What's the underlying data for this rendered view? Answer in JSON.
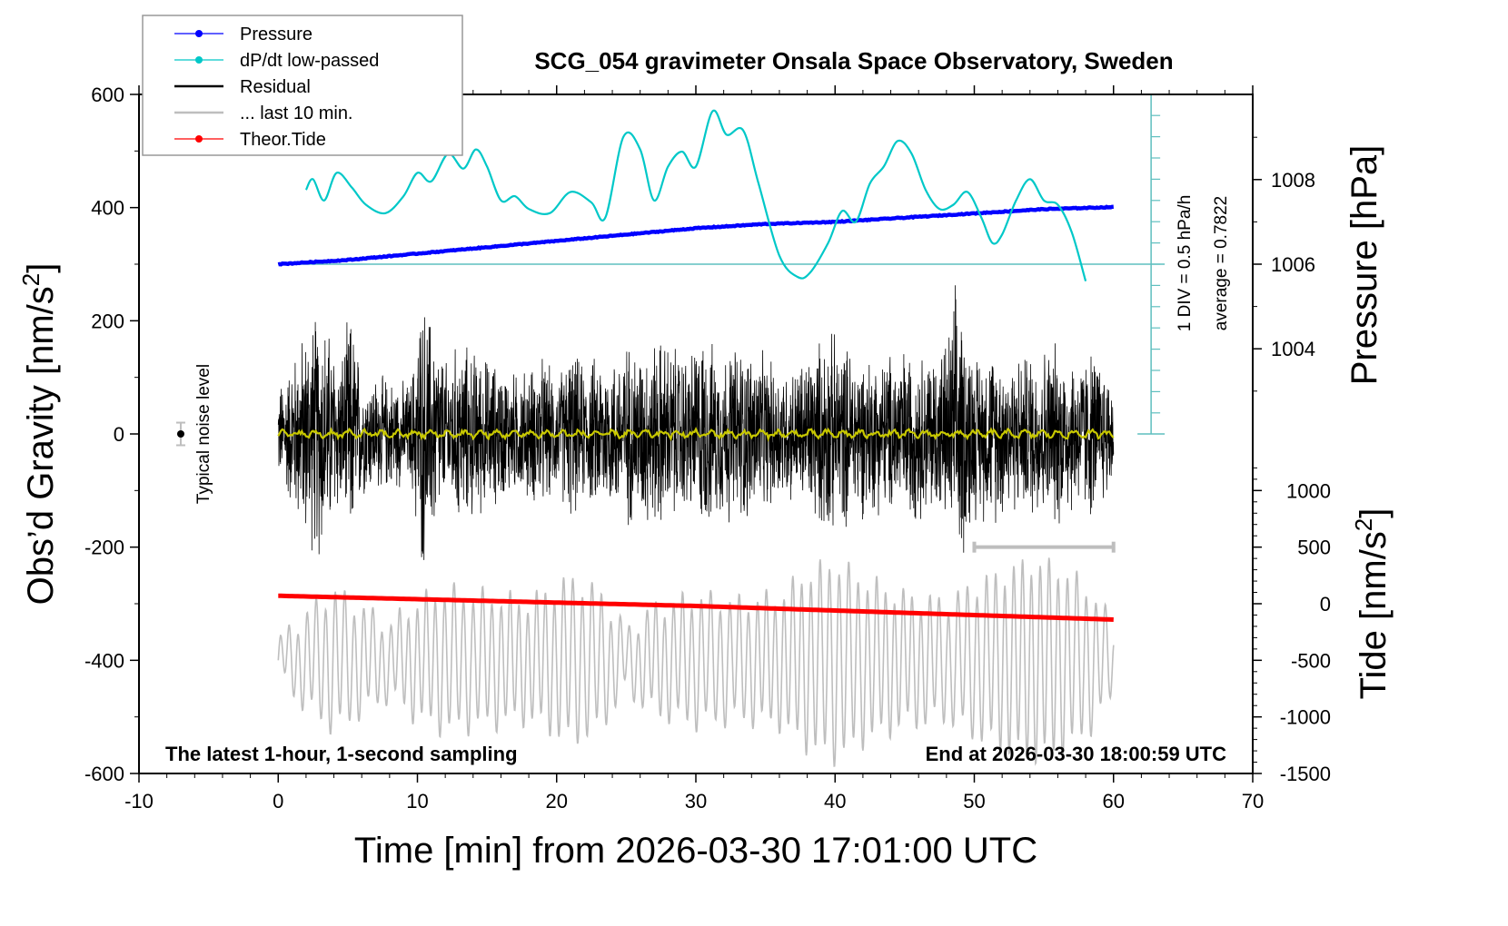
{
  "chart_data": {
    "type": "line",
    "title": "SCG_054 gravimeter Onsala Space Observatory, Sweden",
    "xlabel": "Time [min] from 2026-03-30 17:01:00 UTC",
    "ylabel": "Obs'd Gravity [nm/s²]",
    "ylabel_parts": {
      "base": "Obs’d Gravity [nm/s",
      "sup": "2",
      "end": "]"
    },
    "y2label": "Pressure [hPa]",
    "y3label_parts": {
      "base": "Tide [nm/s",
      "sup": "2",
      "end": "]"
    },
    "xlim": [
      -10,
      70
    ],
    "ylim": [
      -600,
      600
    ],
    "pressure_lim": [
      1002,
      1010
    ],
    "tide_lim": [
      -1500,
      1500
    ],
    "x_ticks": [
      -10,
      0,
      10,
      20,
      30,
      40,
      50,
      60,
      70
    ],
    "x_tick_labels": [
      "-10",
      "0",
      "10",
      "20",
      "30",
      "40",
      "50",
      "60",
      "70"
    ],
    "y_ticks": [
      600,
      400,
      200,
      0,
      -200,
      -400,
      -600
    ],
    "y_tick_labels": [
      "600",
      "400",
      "200",
      "0",
      "-200",
      "-400",
      "-600"
    ],
    "pressure_ticks": [
      1008,
      1006,
      1004
    ],
    "pressure_tick_labels": [
      "1008",
      "1006",
      "1004"
    ],
    "tide_ticks": [
      1000,
      500,
      0,
      -500,
      -1000,
      -1500
    ],
    "tide_tick_labels": [
      "1000",
      "500",
      "0",
      "-500",
      "-1000",
      "-1500"
    ],
    "grid": false,
    "legend": {
      "position": "top-left",
      "entries": [
        {
          "label": "Pressure",
          "color": "#0000ff",
          "marker": true
        },
        {
          "label": "dP/dt low-passed",
          "color": "#00c8c8",
          "marker": true
        },
        {
          "label": "Residual",
          "color": "#000000",
          "marker": false
        },
        {
          "label": "... last 10 min.",
          "color": "#bebebe",
          "marker": false
        },
        {
          "label": "Theor.Tide",
          "color": "#ff0000",
          "marker": true
        }
      ]
    },
    "series": [
      {
        "name": "Pressure",
        "axis": "pressure",
        "color": "#0000ff",
        "x": [
          0,
          5,
          10,
          15,
          20,
          25,
          30,
          35,
          40,
          45,
          50,
          55,
          60
        ],
        "values": [
          1006.0,
          1006.1,
          1006.25,
          1006.4,
          1006.55,
          1006.7,
          1006.85,
          1006.95,
          1007.0,
          1007.1,
          1007.2,
          1007.3,
          1007.35
        ]
      },
      {
        "name": "dP/dt low-passed",
        "axis": "dpdt",
        "color": "#00c8c8",
        "unit_per_div": "0.5 hPa/h",
        "x": [
          2.0,
          2.5,
          3.3,
          4.2,
          5.3,
          6.3,
          7.7,
          9.0,
          10.0,
          11.0,
          12.2,
          13.3,
          14.2,
          15.0,
          16.0,
          17.0,
          18.0,
          19.5,
          21.0,
          22.5,
          23.5,
          24.8,
          26.0,
          27.0,
          28.0,
          29.0,
          30.0,
          31.2,
          32.2,
          33.4,
          34.5,
          36.0,
          37.3,
          38.2,
          39.5,
          40.5,
          41.5,
          42.5,
          43.5,
          44.5,
          45.5,
          46.5,
          47.5,
          48.5,
          49.5,
          50.5,
          51.3,
          52.0,
          53.0,
          54.0,
          55.0,
          56.0,
          57.0,
          58.0
        ],
        "values": [
          3.5,
          4.0,
          3.0,
          4.3,
          3.6,
          2.8,
          2.4,
          3.2,
          4.3,
          3.9,
          5.2,
          4.5,
          5.4,
          4.6,
          3.0,
          3.2,
          2.6,
          2.4,
          3.4,
          2.9,
          2.2,
          6.0,
          5.4,
          3.0,
          4.6,
          5.3,
          4.6,
          7.2,
          6.1,
          6.3,
          3.8,
          0.4,
          -0.6,
          -0.4,
          1.0,
          2.5,
          2.0,
          3.8,
          4.6,
          5.8,
          5.2,
          3.5,
          2.6,
          2.8,
          3.4,
          2.2,
          1.0,
          1.4,
          3.0,
          4.0,
          3.0,
          2.8,
          1.5,
          -0.8
        ],
        "divisions": 10,
        "average": "0.7822"
      },
      {
        "name": "Residual",
        "axis": "gravity",
        "color": "#000000",
        "x_range": [
          0,
          60
        ],
        "envelope_x": [
          0,
          2,
          3,
          4.5,
          5.2,
          6,
          8,
          9.5,
          10.3,
          11,
          12,
          13,
          15,
          17,
          18,
          19,
          20,
          21,
          22,
          23,
          24,
          25,
          26,
          27.5,
          28.5,
          29.5,
          30.5,
          31.5,
          33,
          34,
          35.5,
          37,
          38,
          39.5,
          40.5,
          42,
          43,
          45,
          46.5,
          48,
          48.7,
          50,
          51.5,
          53,
          54.5,
          56,
          57.5,
          58.5,
          60
        ],
        "envelope_amp": [
          90,
          210,
          250,
          150,
          240,
          120,
          110,
          100,
          270,
          230,
          140,
          180,
          150,
          120,
          130,
          150,
          110,
          170,
          130,
          160,
          150,
          180,
          170,
          190,
          170,
          160,
          200,
          160,
          180,
          170,
          140,
          130,
          160,
          200,
          180,
          160,
          150,
          170,
          160,
          180,
          290,
          160,
          170,
          150,
          170,
          180,
          150,
          170,
          110
        ]
      },
      {
        "name": "Residual smoothed",
        "axis": "gravity",
        "color": "#c8c800",
        "x_range": [
          0,
          60
        ],
        "mean": 0,
        "amplitude": 8
      },
      {
        "name": "... last 10 min.",
        "axis": "gravity",
        "color": "#bebebe",
        "x_range": [
          0,
          60
        ],
        "center": -400,
        "envelope_x": [
          0,
          2,
          4,
          6,
          8,
          10,
          12,
          15,
          18,
          21,
          23,
          25,
          27,
          30,
          33,
          36,
          38,
          40,
          42,
          45,
          48,
          50,
          52,
          54,
          56,
          58,
          60
        ],
        "envelope_amp": [
          30,
          80,
          120,
          90,
          60,
          100,
          120,
          110,
          100,
          140,
          120,
          50,
          90,
          110,
          100,
          110,
          150,
          170,
          140,
          110,
          100,
          130,
          150,
          170,
          160,
          130,
          60
        ]
      },
      {
        "name": "Theor.Tide",
        "axis": "tide",
        "color": "#ff0000",
        "x": [
          0,
          10,
          20,
          30,
          40,
          50,
          60
        ],
        "values": [
          70,
          40,
          10,
          -20,
          -60,
          -100,
          -140
        ]
      }
    ],
    "noise_level": {
      "label": "Typical noise level",
      "x": -7,
      "value": 0,
      "error": 20
    },
    "last_10min_bar": {
      "x_start": 50,
      "x_end": 60,
      "value": -200
    },
    "annotations": {
      "bottom_left": "The latest 1-hour, 1-second sampling",
      "bottom_right": "End at 2026-03-30 18:00:59 UTC",
      "dpdt_div": "1 DIV = 0.5 hPa/h",
      "dpdt_average": "average = 0.7822"
    }
  }
}
